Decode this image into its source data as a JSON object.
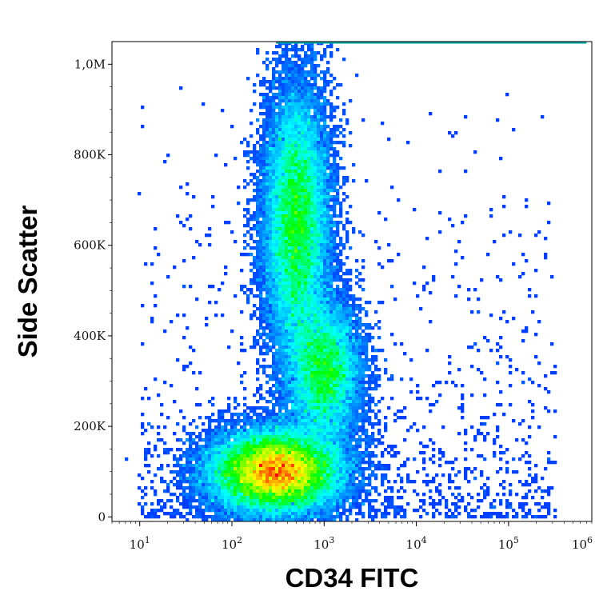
{
  "chart_data": {
    "type": "heatmap",
    "subtype": "flow-cytometry density scatter",
    "title": "",
    "xlabel": "CD34 FITC",
    "ylabel": "Side Scatter",
    "x_scale": "log",
    "xlim": [
      5,
      800000
    ],
    "ylim": [
      -10000,
      1050000
    ],
    "x_ticks": [
      {
        "value": 10,
        "base": "10",
        "exp": "1"
      },
      {
        "value": 100,
        "base": "10",
        "exp": "2"
      },
      {
        "value": 1000,
        "base": "10",
        "exp": "3"
      },
      {
        "value": 10000,
        "base": "10",
        "exp": "4"
      },
      {
        "value": 100000,
        "base": "10",
        "exp": "5"
      },
      {
        "value": 1000000,
        "base": "10",
        "exp": "6"
      }
    ],
    "y_ticks": [
      {
        "value": 0,
        "label": "0"
      },
      {
        "value": 200000,
        "label": "200K"
      },
      {
        "value": 400000,
        "label": "400K"
      },
      {
        "value": 600000,
        "label": "600K"
      },
      {
        "value": 800000,
        "label": "800K"
      },
      {
        "value": 1000000,
        "label": "1,0M"
      }
    ],
    "populations": [
      {
        "x": 300,
        "y": 100000,
        "x_spread_decades": 0.35,
        "y_spread": 45000,
        "peak_color": "#ff0000"
      },
      {
        "x": 500,
        "y": 650000,
        "x_spread_decades": 0.18,
        "y_spread": 150000,
        "peak_color": "#33cc33"
      },
      {
        "x": 1000,
        "y": 320000,
        "x_spread_decades": 0.2,
        "y_spread": 80000,
        "peak_color": "#00c8ff"
      }
    ],
    "grid": false,
    "legend": "none",
    "colors": {
      "low": "#0000ff",
      "mid": "#00ffff",
      "high": "#ff0000",
      "axis": "#000000"
    }
  }
}
